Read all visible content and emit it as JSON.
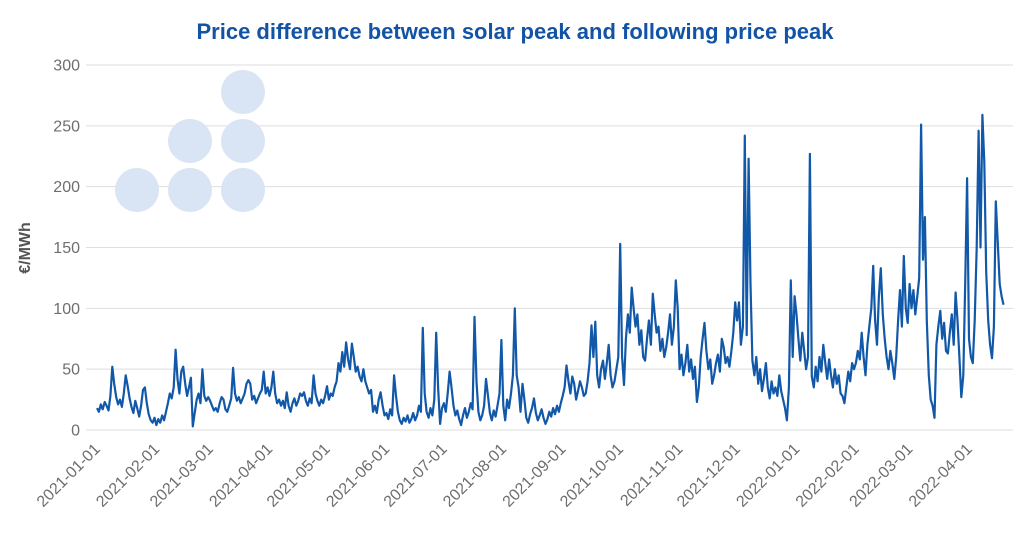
{
  "page": {
    "background": "#ffffff"
  },
  "chart": {
    "title_color": "#1353a5",
    "line_color": "#1158a8",
    "grid_color": "#dedede",
    "tick_label_color": "#6e6e6e",
    "axis_label_color": "#545454",
    "logo": {
      "name": "bullet-triangle-logo",
      "circle_color": "#d9e4f4"
    }
  },
  "chart_data": {
    "type": "line",
    "title": "Price difference between solar peak and following price peak",
    "xlabel": "",
    "ylabel": "€/MWh",
    "ylim": [
      0,
      300
    ],
    "y_ticks": [
      0,
      50,
      100,
      150,
      200,
      250,
      300
    ],
    "grid": "horizontal",
    "legend": "none",
    "x_start_date": "2021-01-01",
    "x_end_date": "2022-04-19",
    "frequency": "daily",
    "x_tick_labels": [
      "2021-01-01",
      "2021-02-01",
      "2021-03-01",
      "2021-04-01",
      "2021-05-01",
      "2021-06-01",
      "2021-07-01",
      "2021-08-01",
      "2021-09-01",
      "2021-10-01",
      "2021-11-01",
      "2021-12-01",
      "2022-01-01",
      "2022-02-01",
      "2022-03-01",
      "2022-04-01"
    ],
    "x_tick_day_offsets": [
      0,
      31,
      59,
      90,
      120,
      151,
      181,
      212,
      243,
      273,
      304,
      334,
      365,
      396,
      424,
      455
    ],
    "series_name": "price difference",
    "values": [
      18,
      15,
      21,
      17,
      23,
      20,
      16,
      28,
      52,
      38,
      27,
      21,
      25,
      19,
      30,
      45,
      36,
      26,
      19,
      14,
      24,
      18,
      11,
      20,
      33,
      35,
      22,
      13,
      8,
      6,
      10,
      4,
      9,
      6,
      12,
      8,
      15,
      22,
      30,
      26,
      35,
      66,
      42,
      30,
      48,
      52,
      38,
      28,
      35,
      43,
      3,
      14,
      25,
      30,
      22,
      50,
      28,
      24,
      27,
      24,
      20,
      16,
      18,
      15,
      22,
      27,
      25,
      17,
      15,
      20,
      26,
      51,
      30,
      24,
      27,
      22,
      26,
      30,
      38,
      41,
      38,
      25,
      28,
      22,
      26,
      30,
      33,
      48,
      30,
      35,
      28,
      35,
      48,
      30,
      22,
      25,
      20,
      24,
      18,
      31,
      20,
      15,
      22,
      26,
      20,
      24,
      30,
      28,
      31,
      24,
      20,
      26,
      22,
      45,
      30,
      24,
      20,
      25,
      22,
      28,
      36,
      25,
      30,
      28,
      35,
      40,
      55,
      48,
      64,
      52,
      72,
      58,
      50,
      71,
      60,
      48,
      52,
      44,
      40,
      50,
      40,
      35,
      30,
      33,
      15,
      20,
      14,
      25,
      31,
      20,
      12,
      14,
      9,
      17,
      12,
      45,
      28,
      15,
      8,
      5,
      10,
      7,
      12,
      6,
      9,
      14,
      8,
      12,
      20,
      15,
      84,
      30,
      15,
      10,
      18,
      12,
      25,
      80,
      35,
      5,
      18,
      22,
      15,
      30,
      48,
      35,
      20,
      12,
      16,
      9,
      4,
      12,
      18,
      10,
      15,
      22,
      17,
      93,
      40,
      15,
      8,
      12,
      20,
      42,
      28,
      14,
      8,
      16,
      11,
      20,
      30,
      74,
      20,
      8,
      25,
      18,
      30,
      45,
      100,
      45,
      35,
      15,
      38,
      25,
      10,
      6,
      13,
      18,
      26,
      14,
      8,
      12,
      17,
      10,
      5,
      9,
      15,
      11,
      18,
      13,
      20,
      15,
      22,
      28,
      35,
      53,
      40,
      30,
      44,
      38,
      25,
      32,
      40,
      35,
      28,
      30,
      40,
      55,
      86,
      60,
      89,
      45,
      35,
      50,
      57,
      42,
      55,
      70,
      45,
      35,
      40,
      50,
      60,
      153,
      60,
      37,
      75,
      95,
      80,
      117,
      100,
      85,
      95,
      70,
      82,
      60,
      57,
      75,
      90,
      70,
      112,
      95,
      80,
      85,
      65,
      75,
      60,
      68,
      80,
      95,
      70,
      85,
      123,
      100,
      50,
      62,
      45,
      55,
      70,
      48,
      58,
      42,
      52,
      23,
      35,
      60,
      75,
      88,
      65,
      50,
      58,
      38,
      45,
      55,
      62,
      48,
      75,
      68,
      55,
      60,
      52,
      65,
      80,
      105,
      90,
      105,
      70,
      85,
      242,
      78,
      223,
      120,
      57,
      45,
      60,
      38,
      50,
      32,
      42,
      55,
      35,
      26,
      40,
      30,
      35,
      28,
      45,
      32,
      25,
      18,
      8,
      35,
      123,
      60,
      110,
      95,
      75,
      57,
      80,
      65,
      50,
      60,
      227,
      44,
      35,
      52,
      40,
      60,
      48,
      70,
      55,
      42,
      58,
      45,
      35,
      50,
      38,
      45,
      30,
      28,
      22,
      35,
      48,
      40,
      55,
      50,
      55,
      65,
      58,
      80,
      60,
      45,
      70,
      85,
      100,
      135,
      90,
      70,
      110,
      133,
      95,
      75,
      60,
      50,
      65,
      55,
      42,
      60,
      90,
      115,
      85,
      143,
      100,
      88,
      120,
      100,
      115,
      95,
      110,
      125,
      251,
      140,
      175,
      90,
      45,
      25,
      20,
      10,
      70,
      85,
      98,
      75,
      88,
      65,
      63,
      80,
      95,
      70,
      113,
      90,
      60,
      27,
      45,
      120,
      207,
      75,
      60,
      55,
      90,
      150,
      246,
      150,
      259,
      220,
      130,
      90,
      70,
      59,
      85,
      188,
      155,
      120,
      110,
      103
    ]
  }
}
